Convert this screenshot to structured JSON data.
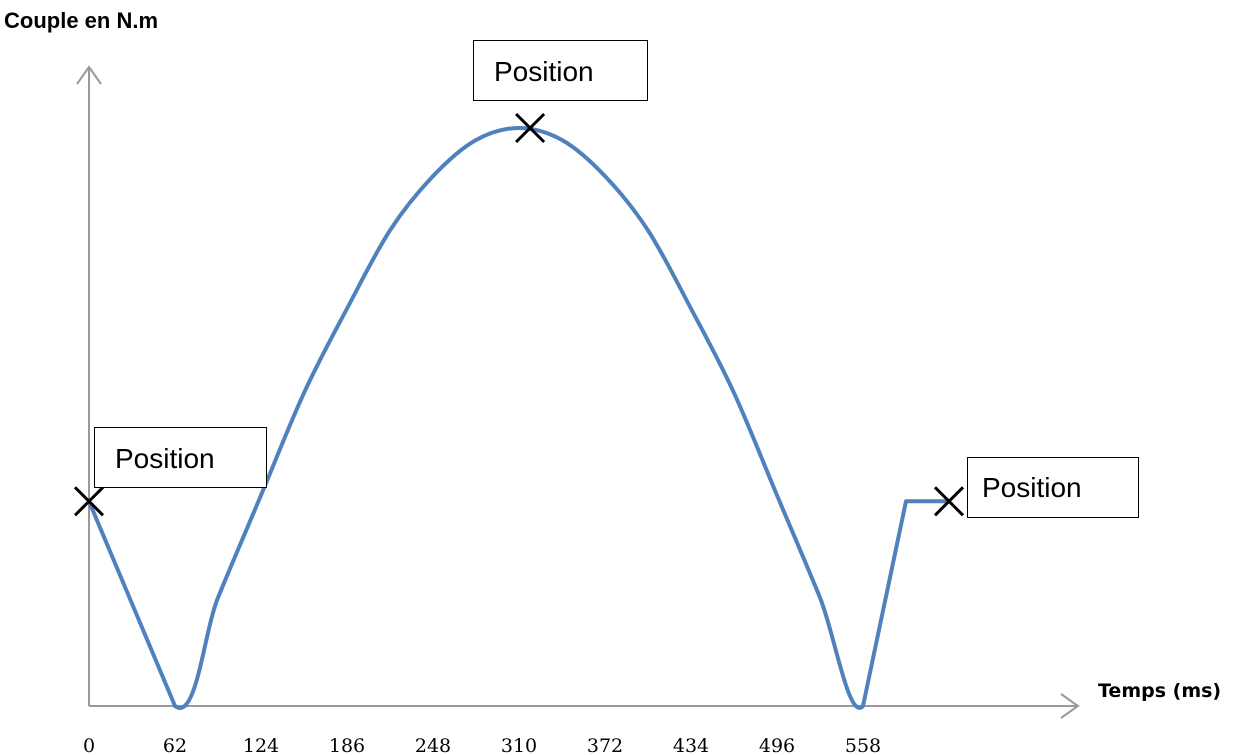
{
  "chart_data": {
    "type": "line",
    "ylabel": "Couple en N.m",
    "xlabel": "Temps (ms)",
    "x_ticks": [
      "0",
      "62",
      "124",
      "186",
      "248",
      "310",
      "372",
      "434",
      "496",
      "558"
    ],
    "xlim": [
      0,
      620
    ],
    "ylim": [
      0,
      1
    ],
    "series": [
      {
        "color": "#4f81bd",
        "x": [
          0,
          62,
          93,
          124,
          155,
          186,
          217,
          248,
          279,
          310,
          341,
          372,
          403,
          434,
          465,
          496,
          527,
          558,
          589,
          620
        ],
        "y": [
          0.34,
          0,
          0.18,
          0.35,
          0.52,
          0.66,
          0.79,
          0.88,
          0.94,
          0.96,
          0.94,
          0.88,
          0.79,
          0.66,
          0.52,
          0.35,
          0.18,
          0,
          0.34,
          0.34
        ]
      }
    ],
    "markers": [
      {
        "x": 0,
        "y": 0.34,
        "label": "Position"
      },
      {
        "x": 318,
        "y": 0.96,
        "label": "Position"
      },
      {
        "x": 620,
        "y": 0.34,
        "label": "Position"
      }
    ],
    "grid": false
  }
}
